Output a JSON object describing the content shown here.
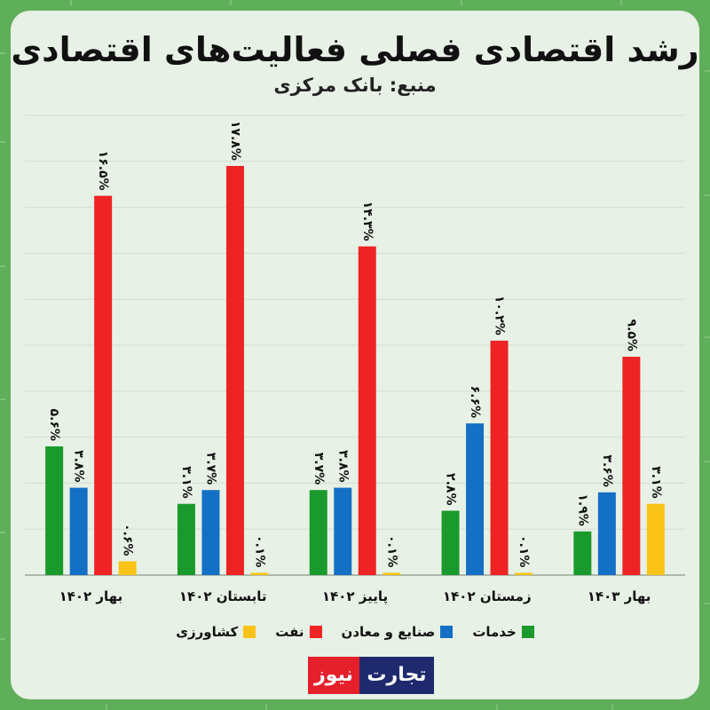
{
  "title": "رشد اقتصادی فصلی فعالیت‌های اقتصادی",
  "subtitle": "منبع: بانک مرکزی",
  "logo": {
    "part1": "نیوز",
    "part2": "تجارت"
  },
  "colors": {
    "خدمات": "#1a9a2c",
    "صنایع و معادن": "#1470c4",
    "نفت": "#ee2323",
    "کشاورزی": "#f8c316"
  },
  "legend": [
    {
      "name": "خدمات",
      "color": "#1a9a2c"
    },
    {
      "name": "صنایع و معادن",
      "color": "#1470c4"
    },
    {
      "name": "نفت",
      "color": "#ee2323"
    },
    {
      "name": "کشاورزی",
      "color": "#f8c316"
    }
  ],
  "chart_data": {
    "type": "bar",
    "categories": [
      "بهار ۱۴۰۲",
      "تابستان ۱۴۰۲",
      "پاییز ۱۴۰۲",
      "زمستان ۱۴۰۲",
      "بهار ۱۴۰۳"
    ],
    "series": [
      {
        "name": "خدمات",
        "values": [
          5.6,
          3.1,
          3.7,
          2.8,
          1.9
        ],
        "labels": [
          "۵.۶%",
          "۳.۱%",
          "۳.۷%",
          "۲.۸%",
          "۱.۹%"
        ]
      },
      {
        "name": "صنایع و معادن",
        "values": [
          3.8,
          3.7,
          3.8,
          6.6,
          3.6
        ],
        "labels": [
          "۳.۸%",
          "۳.۷%",
          "۳.۸%",
          "۶.۶%",
          "۳.۶%"
        ]
      },
      {
        "name": "نفت",
        "values": [
          16.5,
          17.8,
          14.3,
          10.2,
          9.5
        ],
        "labels": [
          "۱۶.۵%",
          "۱۷.۸%",
          "۱۴.۳%",
          "۱۰.۲%",
          "۹.۵%"
        ]
      },
      {
        "name": "کشاورزی",
        "values": [
          0.6,
          0.1,
          0.1,
          0.1,
          3.1
        ],
        "labels": [
          "۰.۶%",
          "۰.۱%",
          "۰.۱%",
          "۰.۱%",
          "۳.۱%"
        ]
      }
    ],
    "ylim": [
      0,
      20
    ],
    "grid": true,
    "legend_position": "bottom"
  }
}
